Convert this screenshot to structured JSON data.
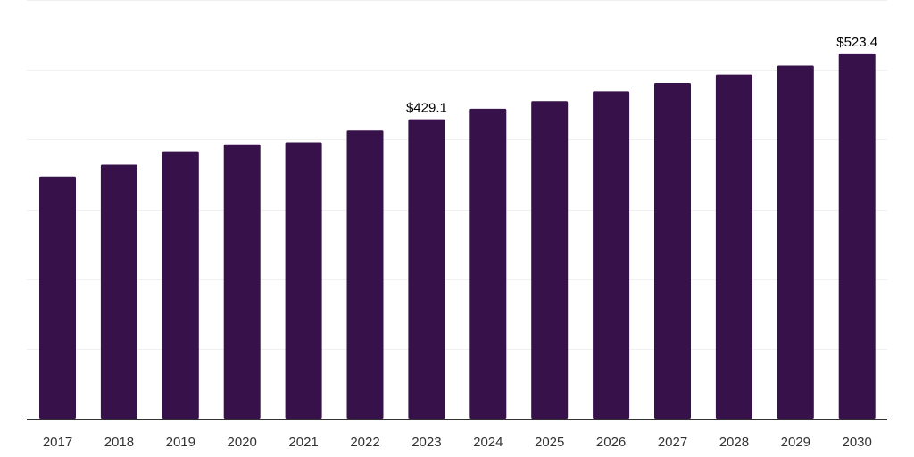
{
  "chart_data": {
    "type": "bar",
    "categories": [
      "2017",
      "2018",
      "2019",
      "2020",
      "2021",
      "2022",
      "2023",
      "2024",
      "2025",
      "2026",
      "2027",
      "2028",
      "2029",
      "2030"
    ],
    "values": [
      347,
      364,
      383,
      393,
      396,
      413,
      429.1,
      444,
      455,
      469,
      481,
      493,
      506,
      523.4
    ],
    "data_labels": [
      {
        "index": 6,
        "text": "$429.1"
      },
      {
        "index": 13,
        "text": "$523.4"
      }
    ],
    "ylim": [
      0,
      600
    ],
    "grid": true,
    "title": "",
    "xlabel": "",
    "ylabel": "",
    "colors": {
      "bar": "#37114a",
      "grid": "#f0f0f0",
      "axis": "#333333"
    }
  }
}
